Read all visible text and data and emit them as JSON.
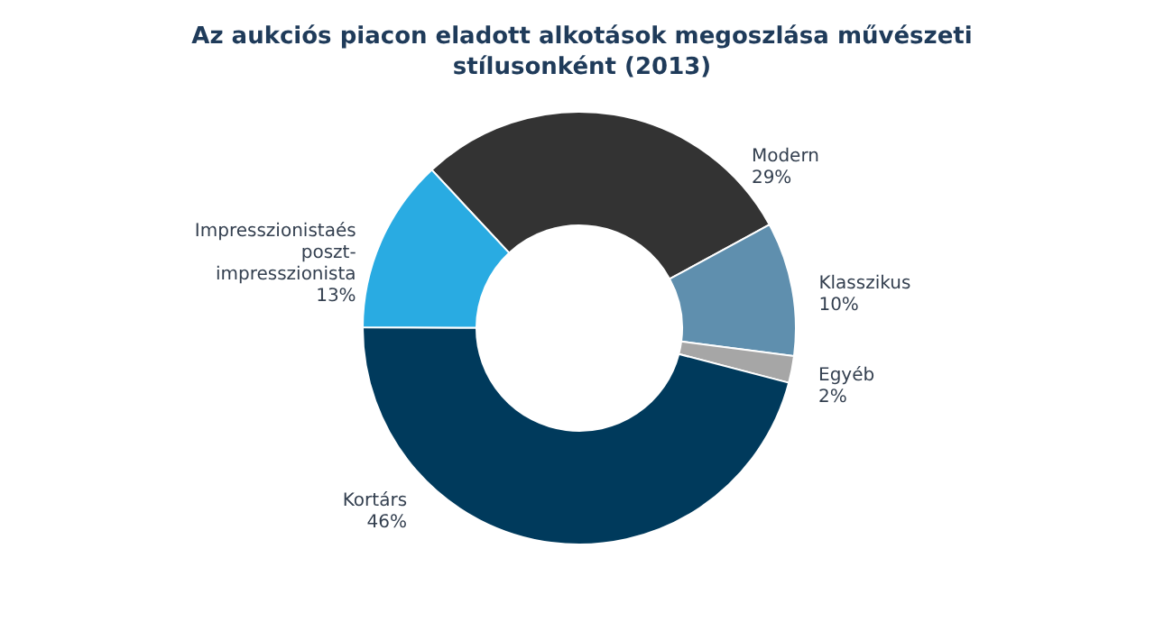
{
  "chart_data": {
    "type": "donut",
    "title": [
      "Az aukciós piacon eladott alkotások megoszlása művészeti",
      "stílusonként (2013)"
    ],
    "categories": [
      "Modern",
      "Klasszikus",
      "Egyéb",
      "Kortárs",
      "Impresszionistaés poszt-impresszionista"
    ],
    "values": [
      29,
      10,
      2,
      46,
      13
    ],
    "value_labels": [
      "29%",
      "10%",
      "2%",
      "46%",
      "13%"
    ],
    "colors": [
      "#333333",
      "#5f8fae",
      "#a6a6a6",
      "#003a5c",
      "#29abe2"
    ]
  }
}
